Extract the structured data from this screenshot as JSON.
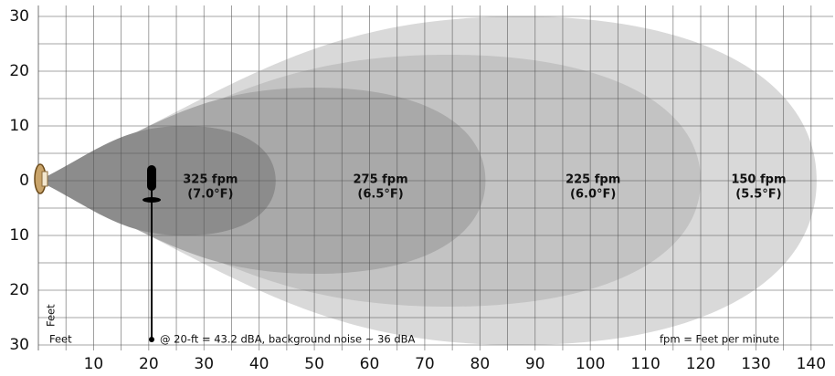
{
  "chart_data": {
    "type": "throw-pattern",
    "series": [
      {
        "name": "150 fpm",
        "sublabel": "(5.5°F)",
        "reach": 141,
        "half_width": 30,
        "color": "#d9d9d9"
      },
      {
        "name": "225 fpm",
        "sublabel": "(6.0°F)",
        "reach": 120,
        "half_width": 23,
        "color": "#c3c3c3"
      },
      {
        "name": "275 fpm",
        "sublabel": "(6.5°F)",
        "reach": 81,
        "half_width": 17,
        "color": "#a9a9a9"
      },
      {
        "name": "325 fpm",
        "sublabel": "(7.0°F)",
        "reach": 43,
        "half_width": 10,
        "color": "#8c8c8c"
      }
    ],
    "xlim": [
      0,
      144
    ],
    "ylim": [
      -31,
      32
    ],
    "xticks": [
      10,
      20,
      30,
      40,
      50,
      60,
      70,
      80,
      90,
      100,
      110,
      120,
      130,
      140
    ],
    "yticks": [
      {
        "value": -30,
        "label": "30"
      },
      {
        "value": -20,
        "label": "20"
      },
      {
        "value": -10,
        "label": "10"
      },
      0,
      10,
      20,
      30
    ],
    "grid": true,
    "y_label": "Feet",
    "x_label": "Feet",
    "annotation": "@ 20-ft = 43.2 dBA, background noise ~ 36 dBA",
    "footnote": "fpm = Feet per minute"
  }
}
